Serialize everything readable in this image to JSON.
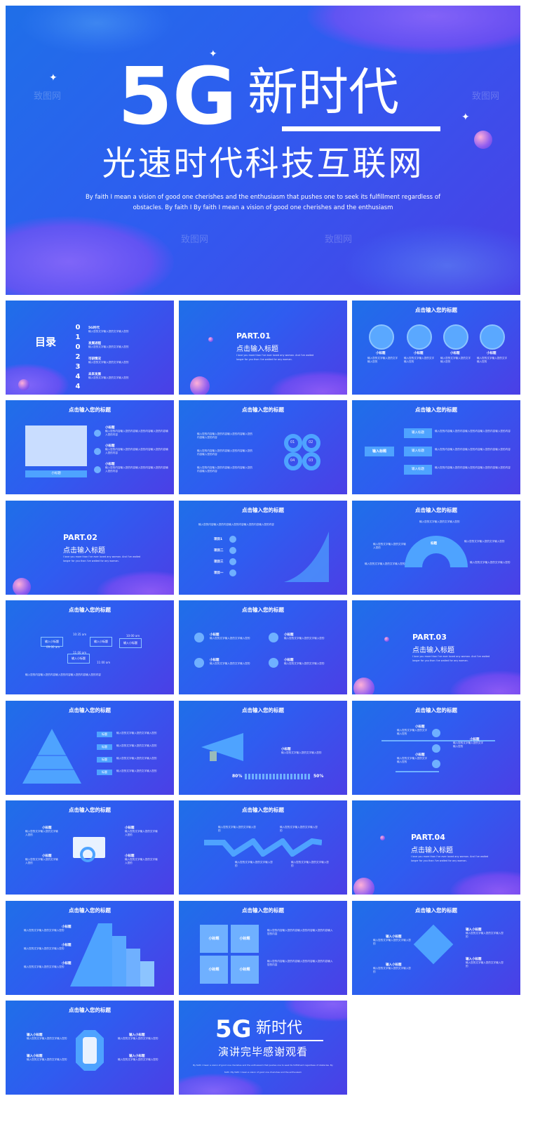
{
  "hero": {
    "big": "5G",
    "title": "新时代",
    "subtitle": "光速时代科技互联网",
    "desc_line1": "By faith I mean a vision of good one cherishes and the enthusiasm that pushes one to seek its fulfillment regardless of",
    "desc_line2": "obstacles. By faith I By faith I mean a vision of good one cherishes and the enthusiasm"
  },
  "watermark": "致图网",
  "common": {
    "slide_title": "点击输入您的标题",
    "input_title": "点击输入标题",
    "small_title": "小标题",
    "tag": "标题",
    "input_small": "输入小标题",
    "input_title_short": "输入标题",
    "body_short": "输入您的文字输入您的文字输入您的",
    "body_long": "输入您的内容输入您的内容输入您的内容输入您的内容输入您的内容",
    "part_desc_1": "I love you more than I've ever loved any woman. And I've waited",
    "part_desc_2": "longer for you than I've waited for any woman."
  },
  "toc": {
    "title": "目录",
    "items": [
      {
        "num": "0",
        "label": "5G时代"
      },
      {
        "num": "1",
        "label": "发展进程"
      },
      {
        "num": "0",
        "label": "可研情况"
      },
      {
        "num": "2",
        "label": "未来发展"
      }
    ],
    "extra_nums": [
      "0",
      "3",
      "0",
      "4"
    ]
  },
  "parts": [
    "PART.01",
    "PART.02",
    "PART.03",
    "PART.04"
  ],
  "slide8": {
    "items": [
      "项目1",
      "项目二",
      "项目三",
      "项目一"
    ]
  },
  "slide10": {
    "times": [
      "10:35 am",
      "09:00 am",
      "10:00 am",
      "11:00 am",
      "11:00 am"
    ]
  },
  "slide14": {
    "left_pct": "80%",
    "right_pct": "50%"
  },
  "slide20": {
    "labels": [
      "小标题",
      "小标题",
      "小标题",
      "小标题"
    ]
  },
  "nums_circle": [
    "01",
    "02",
    "03",
    "04"
  ],
  "end": {
    "big": "5G",
    "title": "新时代",
    "subtitle": "演讲完毕感谢观看",
    "desc_line1": "By faith I mean a vision of good one cherishes and the enthusiasm that pushes one to seek its fulfillment regardless of obstacles. By",
    "desc_line2": "faith I By faith I mean a vision of good one cherishes and the enthusiasm"
  },
  "colors": {
    "bg_start": "#1f6fe8",
    "bg_end": "#4b3fe6",
    "accent_light": "#6fb0ff",
    "pink": "#c26bff"
  }
}
